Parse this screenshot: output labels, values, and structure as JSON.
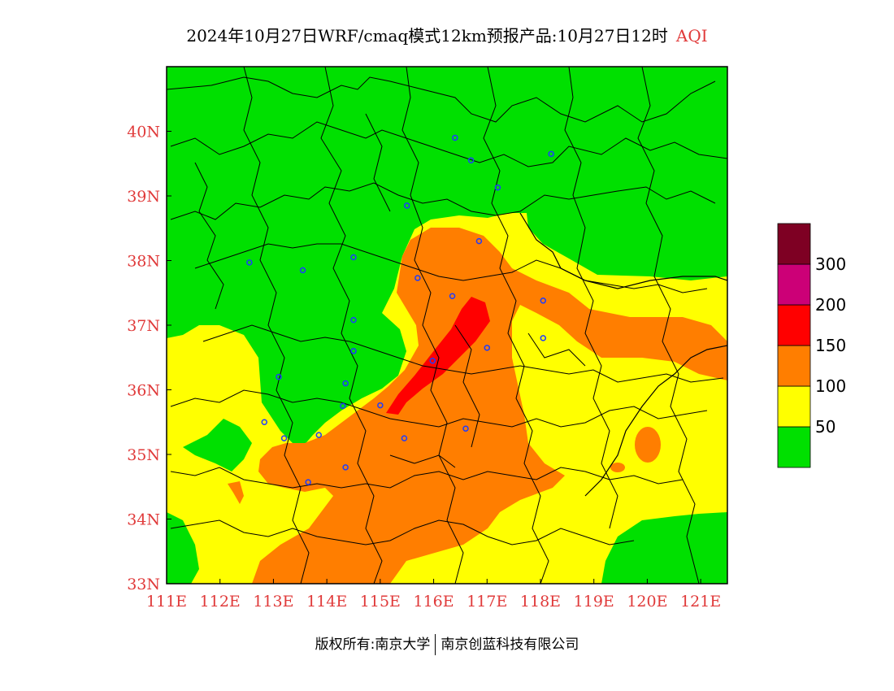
{
  "title": {
    "main": "2024年10月27日WRF/cmaq模式12km预报产品:10月27日12时",
    "variable": "AQI"
  },
  "map": {
    "lon_range": [
      111,
      121.5
    ],
    "lat_range": [
      33,
      41
    ],
    "x_ticks": [
      "111E",
      "112E",
      "113E",
      "114E",
      "115E",
      "116E",
      "117E",
      "118E",
      "119E",
      "120E",
      "121E"
    ],
    "y_ticks": [
      "33N",
      "34N",
      "35N",
      "36N",
      "37N",
      "38N",
      "39N",
      "40N"
    ],
    "tick_color": "#e03a3a",
    "cities": [
      {
        "lon": 116.4,
        "lat": 39.9
      },
      {
        "lon": 116.7,
        "lat": 39.55
      },
      {
        "lon": 118.2,
        "lat": 39.65
      },
      {
        "lon": 117.2,
        "lat": 39.13
      },
      {
        "lon": 115.5,
        "lat": 38.85
      },
      {
        "lon": 116.85,
        "lat": 38.3
      },
      {
        "lon": 112.55,
        "lat": 37.97
      },
      {
        "lon": 113.55,
        "lat": 37.85
      },
      {
        "lon": 114.5,
        "lat": 38.05
      },
      {
        "lon": 115.7,
        "lat": 37.73
      },
      {
        "lon": 116.35,
        "lat": 37.45
      },
      {
        "lon": 118.05,
        "lat": 37.38
      },
      {
        "lon": 114.5,
        "lat": 37.08
      },
      {
        "lon": 118.05,
        "lat": 36.8
      },
      {
        "lon": 117.0,
        "lat": 36.65
      },
      {
        "lon": 114.5,
        "lat": 36.6
      },
      {
        "lon": 115.98,
        "lat": 36.45
      },
      {
        "lon": 113.1,
        "lat": 36.2
      },
      {
        "lon": 114.35,
        "lat": 36.1
      },
      {
        "lon": 114.3,
        "lat": 35.75
      },
      {
        "lon": 115.0,
        "lat": 35.76
      },
      {
        "lon": 112.83,
        "lat": 35.5
      },
      {
        "lon": 116.6,
        "lat": 35.4
      },
      {
        "lon": 113.2,
        "lat": 35.25
      },
      {
        "lon": 113.85,
        "lat": 35.3
      },
      {
        "lon": 115.45,
        "lat": 35.25
      },
      {
        "lon": 114.35,
        "lat": 34.8
      },
      {
        "lon": 113.65,
        "lat": 34.57
      }
    ]
  },
  "legend": {
    "colors": [
      "#00e000",
      "#ffff00",
      "#ff7e00",
      "#ff0000",
      "#cc0077",
      "#7e0023"
    ],
    "labels": [
      "50",
      "100",
      "150",
      "200",
      "300"
    ]
  },
  "footer": {
    "left": "版权所有:南京大学",
    "right": "南京创蓝科技有限公司"
  }
}
